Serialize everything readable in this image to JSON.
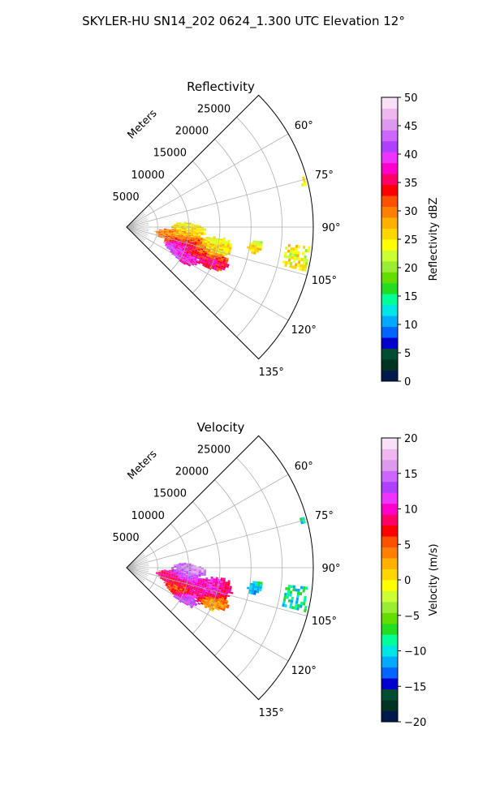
{
  "figure": {
    "suptitle": "SKYLER-HU  SN14_202  0624_1.300 UTC Elevation 12°"
  },
  "chart_data": [
    {
      "type": "heatmap",
      "projection": "polar-sector",
      "title": "Reflectivity",
      "radial_label": "Meters",
      "r_max": 30000,
      "r_ticks": [
        5000,
        10000,
        15000,
        20000,
        25000
      ],
      "r_tick_labels": [
        "5000",
        "10000",
        "15000",
        "20000",
        "25000"
      ],
      "theta_range_deg": [
        45,
        135
      ],
      "theta_ticks": [
        60,
        75,
        90,
        105,
        120,
        135
      ],
      "theta_tick_labels": [
        "60°",
        "75°",
        "90°",
        "105°",
        "120°",
        "135°"
      ],
      "grid": true,
      "colorbar": {
        "label": "Reflectivity dBZ",
        "vmin": 0,
        "vmax": 50,
        "ticks": [
          0,
          5,
          10,
          15,
          20,
          25,
          30,
          35,
          40,
          45,
          50
        ],
        "tick_labels": [
          "0",
          "5",
          "10",
          "15",
          "20",
          "25",
          "30",
          "35",
          "40",
          "45",
          "50"
        ],
        "colors": [
          "#001a4d",
          "#003322",
          "#004d33",
          "#0000cc",
          "#0066ff",
          "#00aaff",
          "#00e5e5",
          "#00ff99",
          "#22dd22",
          "#66dd00",
          "#99ee33",
          "#ccff33",
          "#ffff00",
          "#ffd700",
          "#ffb000",
          "#ff8000",
          "#ff5000",
          "#ff0000",
          "#ff0066",
          "#ff00cc",
          "#ee33ff",
          "#b040ff",
          "#cc66ff",
          "#dd99ee",
          "#eeb8ee",
          "#f8e0f8"
        ]
      }
    },
    {
      "type": "heatmap",
      "projection": "polar-sector",
      "title": "Velocity",
      "radial_label": "Meters",
      "r_max": 30000,
      "r_ticks": [
        5000,
        10000,
        15000,
        20000,
        25000
      ],
      "r_tick_labels": [
        "5000",
        "10000",
        "15000",
        "20000",
        "25000"
      ],
      "theta_range_deg": [
        45,
        135
      ],
      "theta_ticks": [
        60,
        75,
        90,
        105,
        120,
        135
      ],
      "theta_tick_labels": [
        "60°",
        "75°",
        "90°",
        "105°",
        "120°",
        "135°"
      ],
      "grid": true,
      "colorbar": {
        "label": "Velocity (m/s)",
        "vmin": -20,
        "vmax": 20,
        "ticks": [
          -20,
          -15,
          -10,
          -5,
          0,
          5,
          10,
          15,
          20
        ],
        "tick_labels": [
          "−20",
          "−15",
          "−10",
          "−5",
          "0",
          "5",
          "10",
          "15",
          "20"
        ],
        "colors": [
          "#001a4d",
          "#003322",
          "#004d33",
          "#0000cc",
          "#0066ff",
          "#00aaff",
          "#00e5e5",
          "#00ff99",
          "#22dd22",
          "#66dd00",
          "#99ee33",
          "#ccff33",
          "#ffff00",
          "#ffd700",
          "#ffb000",
          "#ff8000",
          "#ff5000",
          "#ff0000",
          "#ff0066",
          "#ff00cc",
          "#ee33ff",
          "#b040ff",
          "#cc66ff",
          "#dd99ee",
          "#eeb8ee",
          "#f8e0f8"
        ]
      }
    }
  ]
}
